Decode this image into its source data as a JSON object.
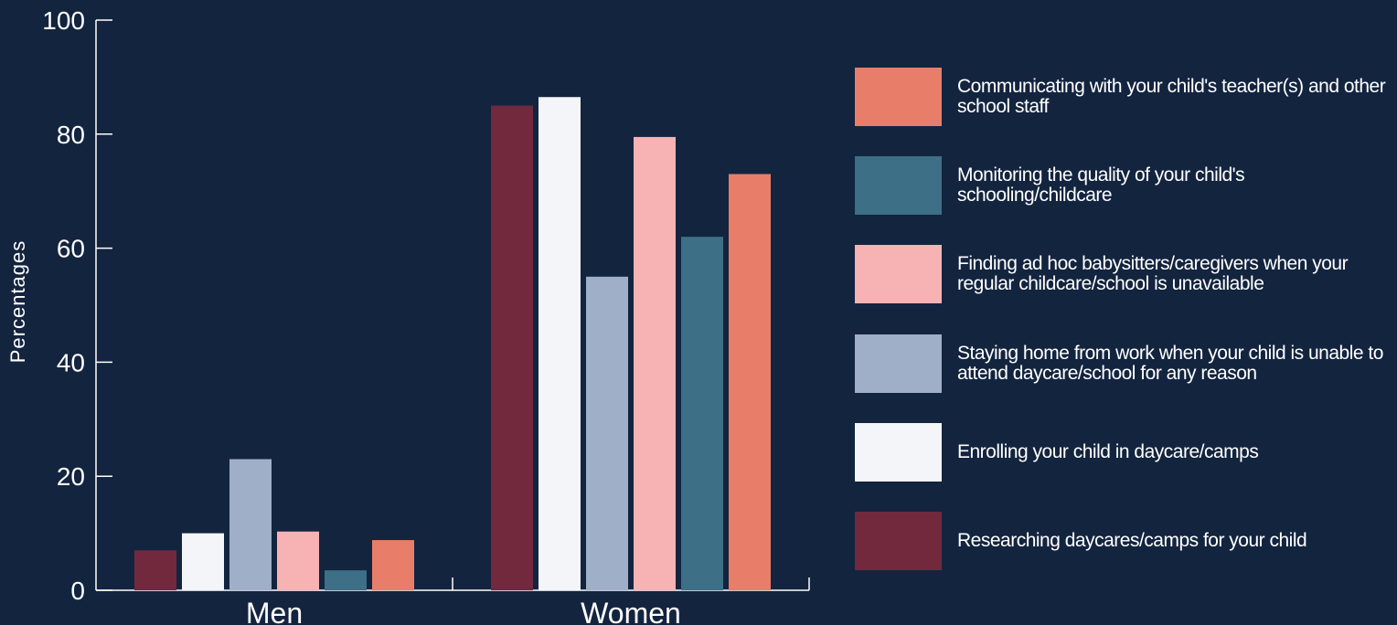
{
  "chart_data": {
    "type": "bar",
    "title": "",
    "xlabel": "",
    "ylabel": "Percentages",
    "ylim": [
      0,
      100
    ],
    "yticks": [
      0,
      20,
      40,
      60,
      80,
      100
    ],
    "categories": [
      "Men",
      "Women"
    ],
    "grid": false,
    "legend_position": "right",
    "series": [
      {
        "name": "Researching daycares/camps for your child",
        "color": "#72293d",
        "values": [
          7,
          85
        ]
      },
      {
        "name": "Enrolling your child in daycare/camps",
        "color": "#f4f5f8",
        "values": [
          10,
          86.5
        ]
      },
      {
        "name": "Staying home from work when your child is unable to attend daycare/school for any reason",
        "color": "#a0afc8",
        "values": [
          23,
          55
        ]
      },
      {
        "name": "Finding ad hoc babysitters/caregivers when your regular childcare/school is unavailable",
        "color": "#f7b2b3",
        "values": [
          10.3,
          79.5
        ]
      },
      {
        "name": "Monitoring the quality of your child's schooling/childcare",
        "color": "#3d6f86",
        "values": [
          3.5,
          62
        ]
      },
      {
        "name": "Communicating with your child's teacher(s) and other school staff",
        "color": "#e87e6a",
        "values": [
          8.8,
          73
        ]
      }
    ],
    "legend_order": [
      5,
      4,
      3,
      2,
      1,
      0
    ]
  },
  "colors": {
    "background": "#13243f",
    "axis": "#ffffff",
    "text": "#ffffff"
  }
}
